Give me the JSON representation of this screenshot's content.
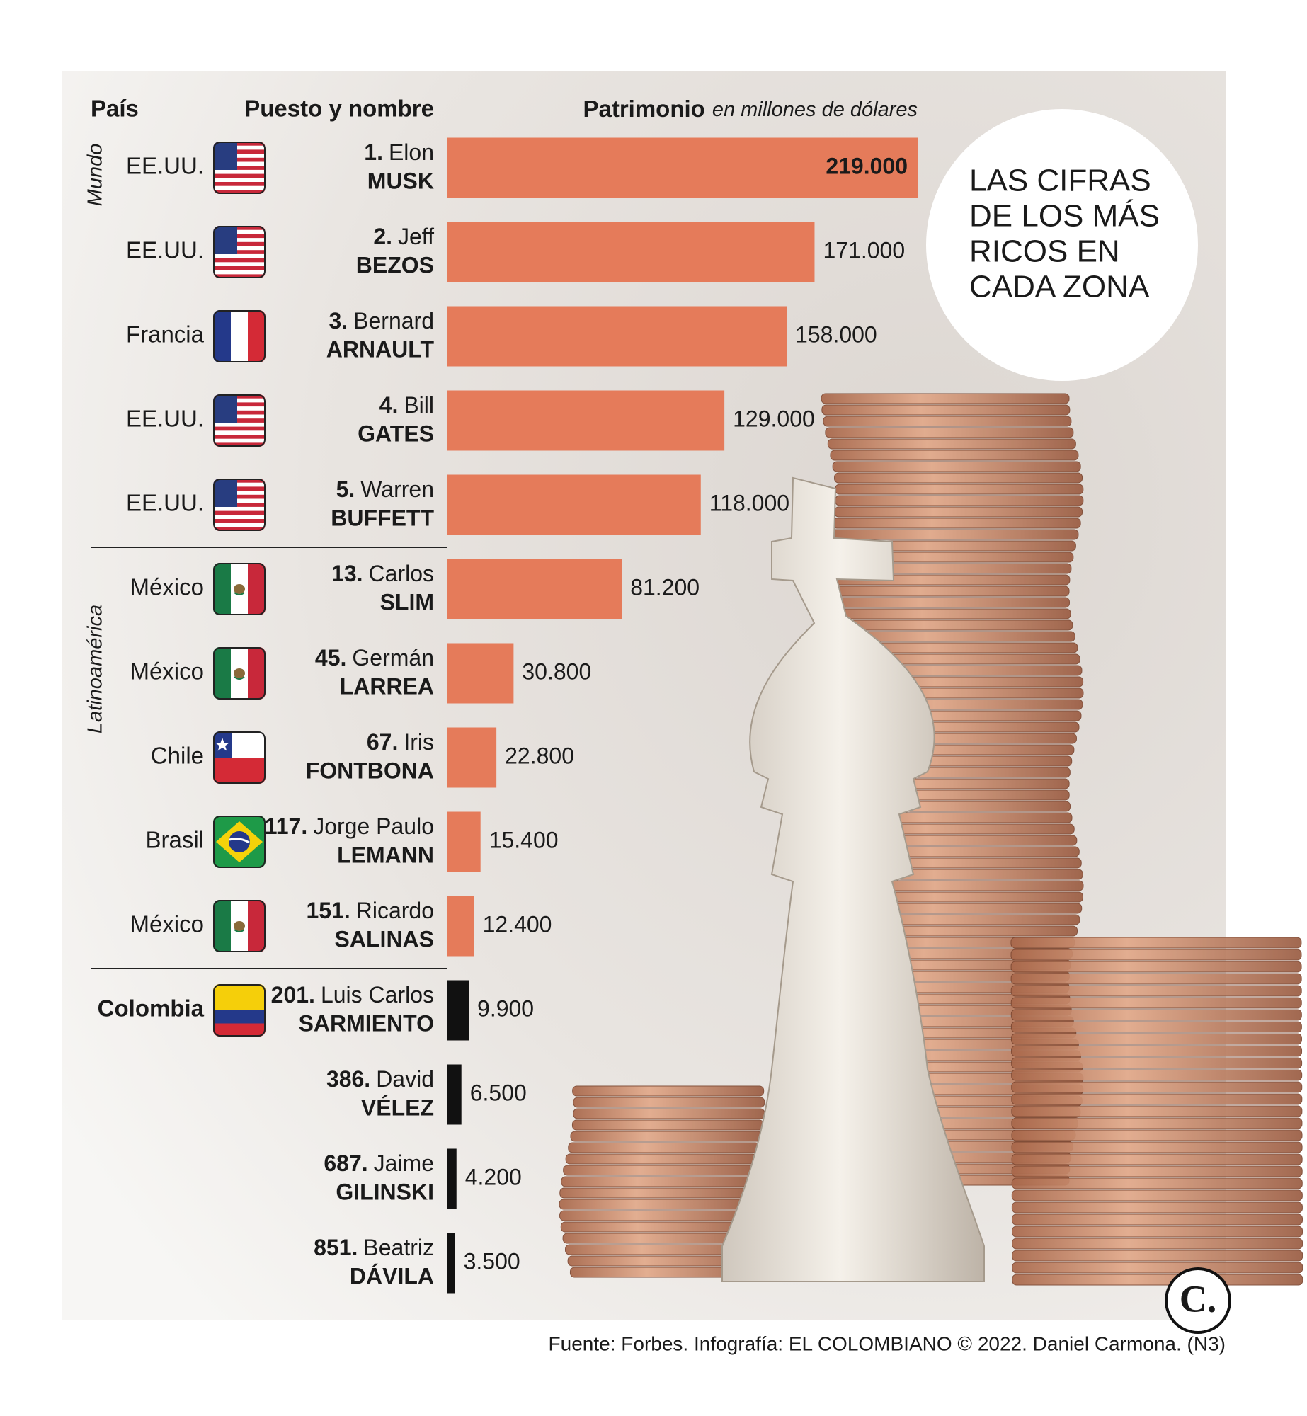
{
  "chart_data": {
    "type": "bar",
    "headers": {
      "country": "País",
      "name": "Puesto y nombre",
      "value": "Patrimonio",
      "value_unit": "en millones de dólares"
    },
    "title_lines": [
      "LAS CIFRAS",
      "DE LOS MÁS",
      "RICOS EN",
      "CADA ZONA"
    ],
    "groups": [
      {
        "label": "Mundo",
        "color": "#e57b5a",
        "rows": [
          {
            "country": "EE.UU.",
            "rank": "1.",
            "first_name": "Elon",
            "last_name": "MUSK",
            "value": 219000,
            "value_label": "219.000"
          },
          {
            "country": "EE.UU.",
            "rank": "2.",
            "first_name": "Jeff",
            "last_name": "BEZOS",
            "value": 171000,
            "value_label": "171.000"
          },
          {
            "country": "Francia",
            "rank": "3.",
            "first_name": "Bernard",
            "last_name": "ARNAULT",
            "value": 158000,
            "value_label": "158.000"
          },
          {
            "country": "EE.UU.",
            "rank": "4.",
            "first_name": "Bill",
            "last_name": "GATES",
            "value": 129000,
            "value_label": "129.000"
          },
          {
            "country": "EE.UU.",
            "rank": "5.",
            "first_name": "Warren",
            "last_name": "BUFFETT",
            "value": 118000,
            "value_label": "118.000"
          }
        ]
      },
      {
        "label": "Latinoamérica",
        "color": "#e57b5a",
        "rows": [
          {
            "country": "México",
            "rank": "13.",
            "first_name": "Carlos",
            "last_name": "SLIM",
            "value": 81200,
            "value_label": "81.200"
          },
          {
            "country": "México",
            "rank": "45.",
            "first_name": "Germán",
            "last_name": "LARREA",
            "value": 30800,
            "value_label": "30.800"
          },
          {
            "country": "Chile",
            "rank": "67.",
            "first_name": "Iris",
            "last_name": "FONTBONA",
            "value": 22800,
            "value_label": "22.800"
          },
          {
            "country": "Brasil",
            "rank": "117.",
            "first_name": "Jorge Paulo",
            "last_name": "LEMANN",
            "value": 15400,
            "value_label": "15.400"
          },
          {
            "country": "México",
            "rank": "151.",
            "first_name": "Ricardo",
            "last_name": "SALINAS",
            "value": 12400,
            "value_label": "12.400"
          }
        ]
      },
      {
        "color": "#111111",
        "rows": [
          {
            "country": "Colombia",
            "rank": "201.",
            "first_name": "Luis Carlos",
            "last_name": "SARMIENTO",
            "value": 9900,
            "value_label": "9.900"
          },
          {
            "country": null,
            "rank": "386.",
            "first_name": "David",
            "last_name": "VÉLEZ",
            "value": 6500,
            "value_label": "6.500"
          },
          {
            "country": null,
            "rank": "687.",
            "first_name": "Jaime",
            "last_name": "GILINSKI",
            "value": 4200,
            "value_label": "4.200"
          },
          {
            "country": null,
            "rank": "851.",
            "first_name": "Beatriz",
            "last_name": "DÁVILA",
            "value": 3500,
            "value_label": "3.500"
          }
        ]
      }
    ],
    "source": "Fuente: Forbes. Infografía: EL COLOMBIANO © 2022. Daniel Carmona. (N3)",
    "logo": "C."
  }
}
